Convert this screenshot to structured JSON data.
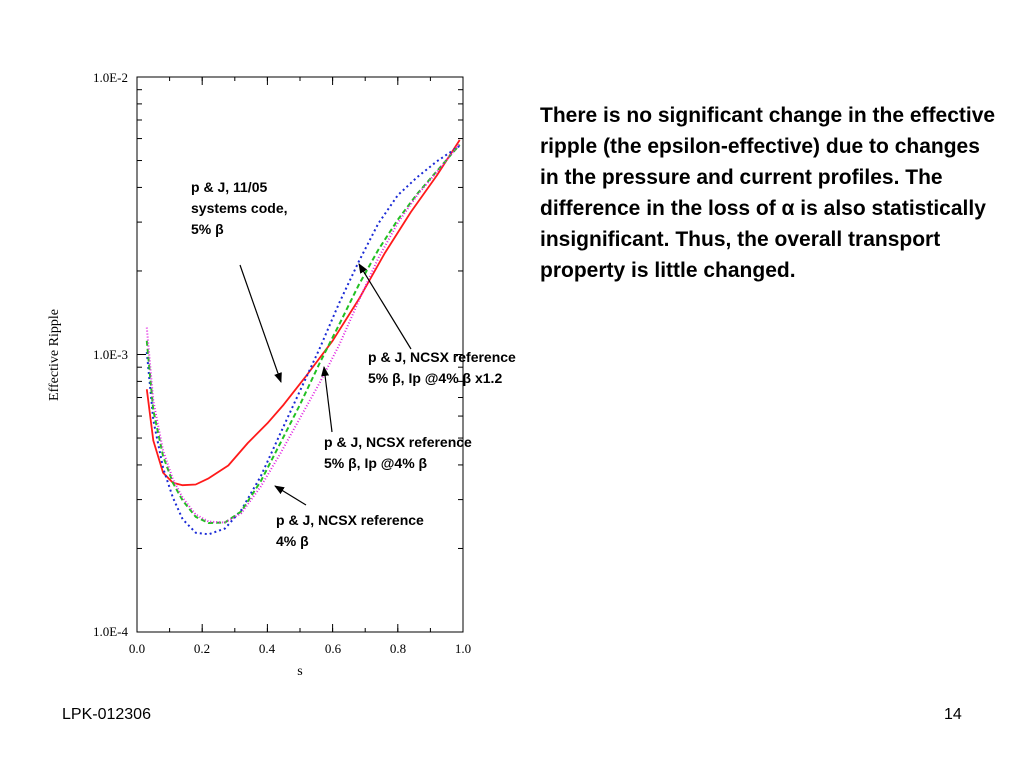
{
  "slide": {
    "body_text": "There is no significant change in the effective ripple (the epsilon-effective) due to changes in the pressure and current profiles. The difference in the loss of α is also statistically insignificant. Thus, the overall transport property is little changed.",
    "footer_left": "LPK-012306",
    "page_number": "14"
  },
  "chart_data": {
    "type": "line",
    "title": "",
    "xlabel": "s",
    "ylabel": "Effective Ripple",
    "xlim": [
      0.0,
      1.0
    ],
    "ylim": [
      0.0001,
      0.01
    ],
    "yscale": "log",
    "grid": false,
    "x_ticks": [
      {
        "value": 0.0,
        "label": "0.0"
      },
      {
        "value": 0.2,
        "label": "0.2"
      },
      {
        "value": 0.4,
        "label": "0.4"
      },
      {
        "value": 0.6,
        "label": "0.6"
      },
      {
        "value": 0.8,
        "label": "0.8"
      },
      {
        "value": 1.0,
        "label": "1.0"
      }
    ],
    "y_ticks": [
      {
        "value": 0.0001,
        "label": "1.0E-4"
      },
      {
        "value": 0.001,
        "label": "1.0E-3"
      },
      {
        "value": 0.01,
        "label": "1.0E-2"
      }
    ],
    "series": [
      {
        "color": "#ff1a1a",
        "dash": "solid",
        "x": [
          0.03,
          0.05,
          0.08,
          0.11,
          0.14,
          0.18,
          0.22,
          0.28,
          0.34,
          0.4,
          0.45,
          0.52,
          0.6,
          0.68,
          0.76,
          0.84,
          0.92,
          0.99
        ],
        "y": [
          0.00075,
          0.00049,
          0.000375,
          0.000345,
          0.000338,
          0.00034,
          0.000358,
          0.000398,
          0.00048,
          0.000565,
          0.00066,
          0.00084,
          0.00112,
          0.00158,
          0.00232,
          0.00326,
          0.00442,
          0.00593
        ]
      },
      {
        "color": "#1a2ad6",
        "dash": "2,3",
        "x": [
          0.03,
          0.05,
          0.08,
          0.11,
          0.14,
          0.18,
          0.22,
          0.27,
          0.32,
          0.38,
          0.44,
          0.5,
          0.56,
          0.62,
          0.68,
          0.74,
          0.8,
          0.86,
          0.92,
          0.99
        ],
        "y": [
          0.00102,
          0.00058,
          0.00039,
          0.000305,
          0.000255,
          0.000228,
          0.000225,
          0.000236,
          0.000275,
          0.000365,
          0.00052,
          0.00074,
          0.00105,
          0.00153,
          0.00216,
          0.00296,
          0.00375,
          0.00436,
          0.00497,
          0.00565
        ]
      },
      {
        "color": "#22c022",
        "dash": "5,3",
        "x": [
          0.03,
          0.05,
          0.08,
          0.11,
          0.14,
          0.18,
          0.22,
          0.27,
          0.32,
          0.38,
          0.44,
          0.5,
          0.56,
          0.62,
          0.68,
          0.74,
          0.8,
          0.86,
          0.92,
          0.99
        ],
        "y": [
          0.00112,
          0.00063,
          0.00043,
          0.000345,
          0.000298,
          0.00026,
          0.000247,
          0.000248,
          0.000272,
          0.00035,
          0.00048,
          0.00066,
          0.00093,
          0.00128,
          0.00178,
          0.00238,
          0.00306,
          0.0038,
          0.00458,
          0.0057
        ]
      },
      {
        "color": "#e020e0",
        "dash": "1,2",
        "x": [
          0.03,
          0.05,
          0.08,
          0.11,
          0.14,
          0.18,
          0.22,
          0.27,
          0.32,
          0.38,
          0.44,
          0.5,
          0.56,
          0.62,
          0.68,
          0.74,
          0.8,
          0.86,
          0.92,
          0.99
        ],
        "y": [
          0.00125,
          0.00068,
          0.00045,
          0.000355,
          0.000305,
          0.000265,
          0.00025,
          0.000248,
          0.000268,
          0.000335,
          0.00044,
          0.00059,
          0.00079,
          0.00108,
          0.00156,
          0.00222,
          0.00298,
          0.00376,
          0.00455,
          0.00575
        ]
      }
    ],
    "annotations": [
      {
        "lines": [
          "p & J, 11/05",
          "systems code,",
          "5% β"
        ]
      },
      {
        "lines": [
          "p & J, NCSX reference",
          "5% β, Ip @4% β x1.2"
        ]
      },
      {
        "lines": [
          "p & J, NCSX reference",
          "5% β, Ip @4% β"
        ]
      },
      {
        "lines": [
          "p & J, NCSX reference",
          "4% β"
        ]
      }
    ]
  }
}
